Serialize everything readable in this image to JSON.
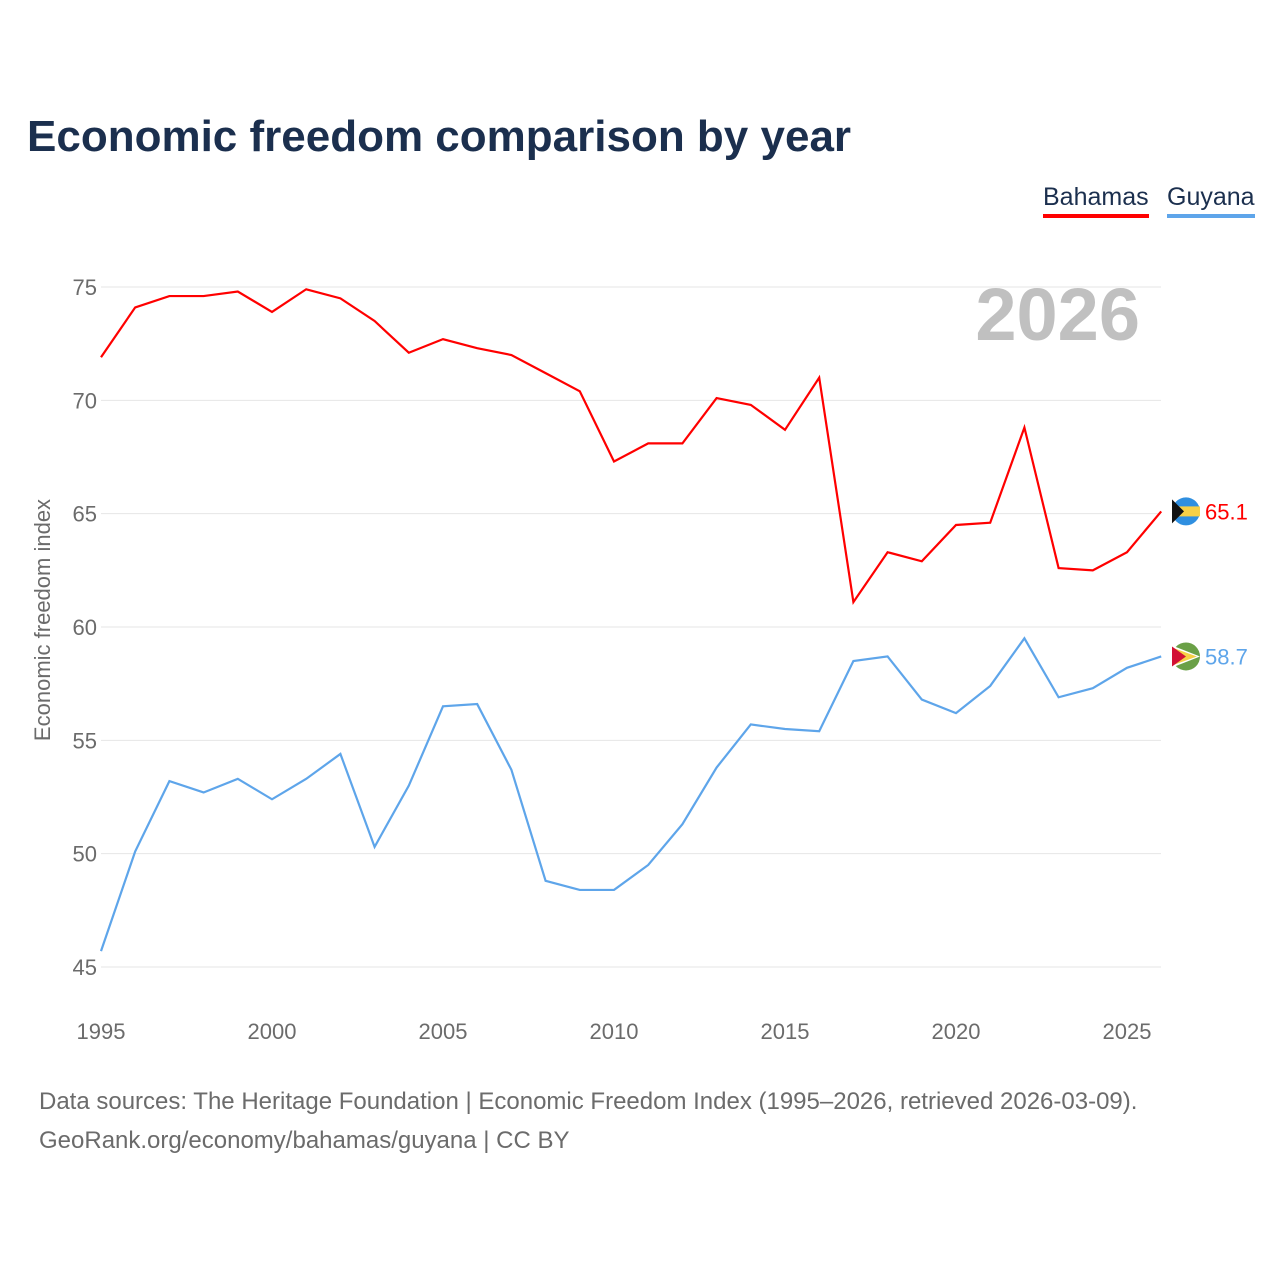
{
  "title": "Economic freedom comparison by year",
  "footer": {
    "line1": "Data sources: The Heritage Foundation | Economic Freedom Index (1995–2026, retrieved 2026-03-09).",
    "line2": "GeoRank.org/economy/bahamas/guyana | CC BY"
  },
  "chart_data": {
    "type": "line",
    "title": "Economic freedom comparison by year",
    "xlabel": "",
    "ylabel": "Economic freedom index",
    "year_watermark": "2026",
    "xlim": [
      1995,
      2026
    ],
    "ylim": [
      43.5,
      76
    ],
    "yticks": [
      45,
      50,
      55,
      60,
      65,
      70,
      75
    ],
    "xticks": [
      1995,
      2000,
      2005,
      2010,
      2015,
      2020,
      2025
    ],
    "grid": true,
    "legend_position": "top-right",
    "x": [
      1995,
      1996,
      1997,
      1998,
      1999,
      2000,
      2001,
      2002,
      2003,
      2004,
      2005,
      2006,
      2007,
      2008,
      2009,
      2010,
      2011,
      2012,
      2013,
      2014,
      2015,
      2016,
      2017,
      2018,
      2019,
      2020,
      2021,
      2022,
      2023,
      2024,
      2025,
      2026
    ],
    "series": [
      {
        "name": "Bahamas",
        "color": "#ff0000",
        "end_label": "65.1",
        "values": [
          71.9,
          74.1,
          74.6,
          74.6,
          74.8,
          73.9,
          74.9,
          74.5,
          73.5,
          72.1,
          72.7,
          72.3,
          72.0,
          71.2,
          70.4,
          67.3,
          68.1,
          68.1,
          70.1,
          69.8,
          68.7,
          71.0,
          61.1,
          63.3,
          62.9,
          64.5,
          64.6,
          68.8,
          62.6,
          62.5,
          63.3,
          65.1
        ]
      },
      {
        "name": "Guyana",
        "color": "#5ea5ea",
        "end_label": "58.7",
        "values": [
          45.7,
          50.1,
          53.2,
          52.7,
          53.3,
          52.4,
          53.3,
          54.4,
          50.3,
          53.0,
          56.5,
          56.6,
          53.7,
          48.8,
          48.4,
          48.4,
          49.5,
          51.3,
          53.8,
          55.7,
          55.5,
          55.4,
          58.5,
          58.7,
          56.8,
          56.2,
          57.4,
          59.5,
          56.9,
          57.3,
          58.2,
          58.7
        ]
      }
    ]
  }
}
